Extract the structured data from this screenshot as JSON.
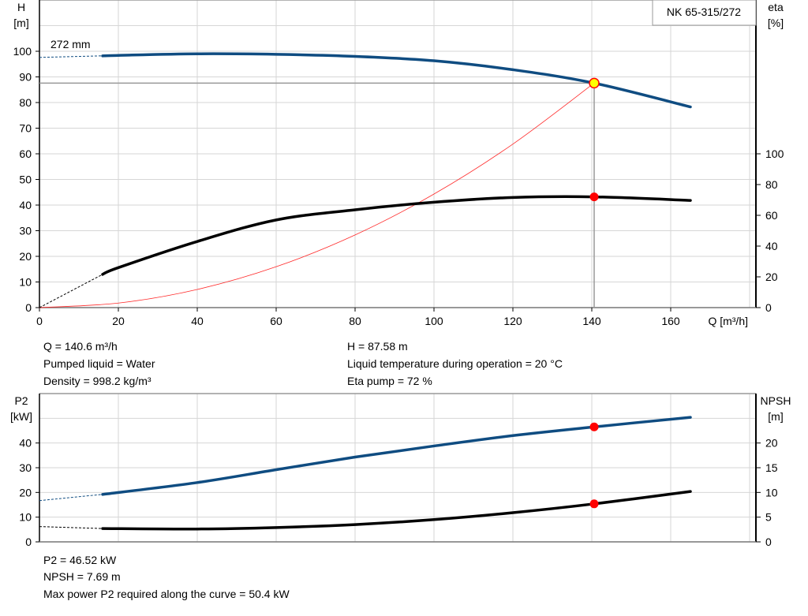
{
  "chart_data": [
    {
      "type": "line",
      "title": "NK 65-315/272",
      "xlabel": "Q [m³/h]",
      "ylabel": "H\n[m]",
      "ylabel_parts": [
        "H",
        "[m]"
      ],
      "y2label_parts": [
        "eta",
        "[%]"
      ],
      "xlim": [
        0,
        181.6
      ],
      "ylim": [
        0,
        120
      ],
      "y2lim": [
        0,
        200
      ],
      "xticks": [
        0,
        20,
        40,
        60,
        80,
        100,
        120,
        140,
        160
      ],
      "yticks": [
        0,
        10,
        20,
        30,
        40,
        50,
        60,
        70,
        80,
        90,
        100
      ],
      "y2ticks": [
        0,
        20,
        40,
        60,
        80,
        100
      ],
      "grid": true,
      "impeller_label": "272 mm",
      "series": [
        {
          "name": "H",
          "axis": "left",
          "color": "#0f4c81",
          "x": [
            16,
            20,
            40,
            60,
            80,
            100,
            120,
            140.6,
            165
          ],
          "y": [
            98.2,
            98.4,
            99,
            98.8,
            98,
            96.3,
            92.8,
            87.58,
            78.3
          ],
          "extrapolated": {
            "x": [
              0,
              16
            ],
            "y": [
              97.6,
              98.2
            ]
          }
        },
        {
          "name": "eta",
          "axis": "right",
          "color": "#000000",
          "x": [
            16,
            20,
            40,
            60,
            80,
            100,
            120,
            140.6,
            165
          ],
          "y": [
            21.6,
            26,
            43,
            57,
            63.6,
            68.5,
            71.6,
            72,
            69.7
          ],
          "extrapolated": {
            "x": [
              0,
              16
            ],
            "y": [
              0,
              21.6
            ]
          }
        },
        {
          "name": "system curve",
          "axis": "left",
          "color": "#ff2a2a",
          "x": [
            0,
            20,
            40,
            60,
            80,
            100,
            120,
            140.6
          ],
          "y": [
            0,
            1.77,
            7.09,
            15.95,
            28.35,
            44.3,
            63.8,
            87.58
          ]
        }
      ],
      "duty_point": {
        "Q": 140.6,
        "H": 87.58,
        "eta": 72
      }
    },
    {
      "type": "line",
      "ylabel_parts": [
        "P2",
        "[kW]"
      ],
      "y2label_parts": [
        "NPSH",
        "[m]"
      ],
      "xlim": [
        0,
        181.6
      ],
      "ylim": [
        0,
        60
      ],
      "y2lim": [
        0,
        30
      ],
      "yticks": [
        0,
        10,
        20,
        30,
        40
      ],
      "y2ticks": [
        0,
        5,
        10,
        15,
        20
      ],
      "grid": true,
      "series": [
        {
          "name": "P2",
          "axis": "left",
          "color": "#0f4c81",
          "x": [
            16,
            40,
            60,
            80,
            100,
            120,
            140.6,
            165
          ],
          "y": [
            19.2,
            24,
            29.2,
            34.3,
            38.8,
            43,
            46.52,
            50.4
          ],
          "extrapolated": {
            "x": [
              0,
              16
            ],
            "y": [
              16.7,
              19.2
            ]
          }
        },
        {
          "name": "NPSH",
          "axis": "right",
          "color": "#000000",
          "x": [
            16,
            40,
            60,
            80,
            100,
            120,
            140.6,
            165
          ],
          "y": [
            2.7,
            2.6,
            2.9,
            3.5,
            4.5,
            5.9,
            7.69,
            10.2
          ],
          "extrapolated": {
            "x": [
              0,
              16
            ],
            "y": [
              3.1,
              2.7
            ]
          }
        }
      ],
      "duty_point": {
        "Q": 140.6,
        "P2": 46.52,
        "NPSH": 7.69
      }
    }
  ],
  "info_top": {
    "q": "Q = 140.6 m³/h",
    "liquid": "Pumped liquid = Water",
    "density": "Density = 998.2 kg/m³",
    "h": "H = 87.58 m",
    "temp": "Liquid temperature during operation = 20 °C",
    "eta": "Eta pump = 72 %"
  },
  "info_bottom": {
    "p2": "P2 = 46.52 kW",
    "npsh": "NPSH = 7.69 m",
    "max_power": "Max power P2 required along the curve = 50.4 kW"
  }
}
